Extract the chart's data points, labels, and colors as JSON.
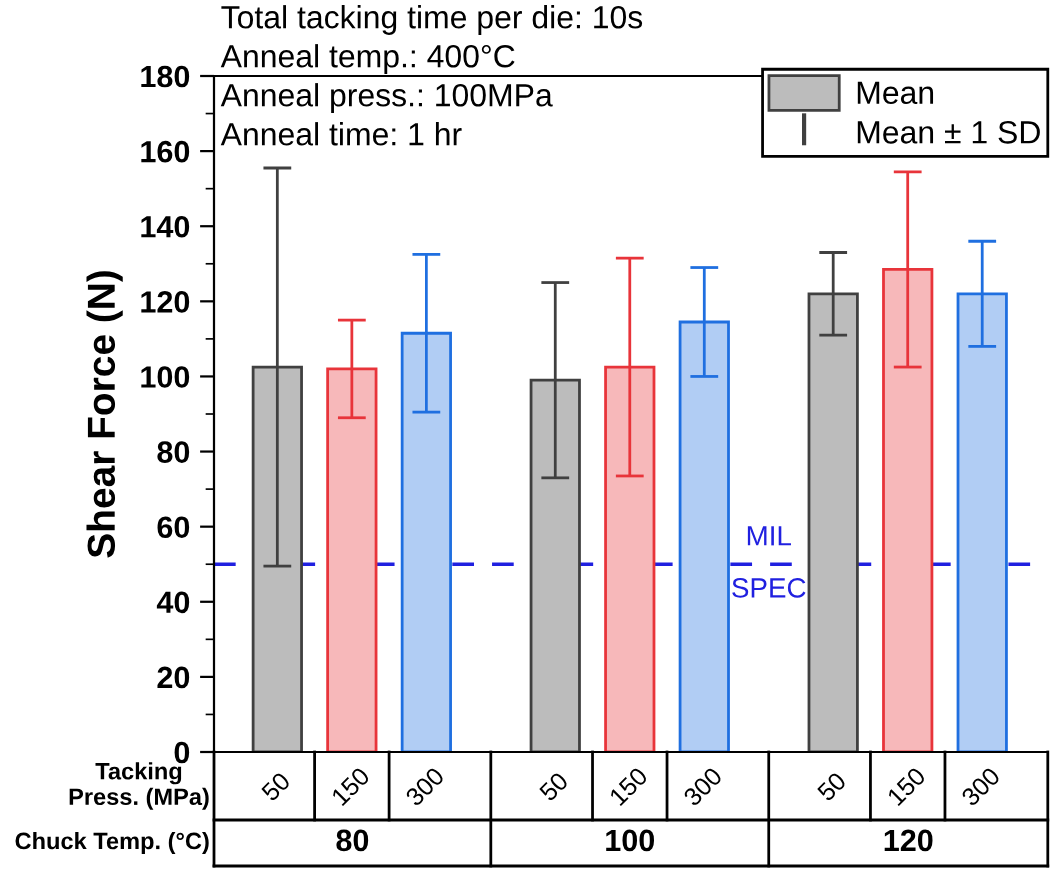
{
  "chart_data": {
    "type": "bar",
    "ylabel": "Shear Force (N)",
    "categories": [
      "50",
      "150",
      "300",
      "50",
      "150",
      "300",
      "50",
      "150",
      "300"
    ],
    "series": [
      {
        "name": "Mean",
        "color": "#404040",
        "colors": [
          "#404040",
          "#e8343a",
          "#1f6fe0",
          "#404040",
          "#e8343a",
          "#1f6fe0",
          "#404040",
          "#e8343a",
          "#1f6fe0"
        ],
        "values": [
          102.5,
          102,
          111.5,
          99,
          102.5,
          114.5,
          122,
          128.5,
          122
        ],
        "errors": [
          53,
          13,
          21,
          26,
          29,
          14.5,
          11,
          26,
          14
        ]
      }
    ],
    "ylim": [
      0,
      180
    ],
    "yticks": [
      0,
      20,
      40,
      60,
      80,
      100,
      120,
      140,
      160,
      180
    ],
    "ref_lines": [
      {
        "axis": "y",
        "value": 50,
        "label": "MIL\nSPEC",
        "color": "#2020e0",
        "line_style": "dashed"
      }
    ],
    "annotations": [
      "Total tacking time per die: 10s",
      "Anneal temp.: 400°C",
      "Anneal press.: 100MPa",
      "Anneal time: 1 hr",
      "Mean ± 1 SD",
      "Tacking\nPress. (MPa)",
      "Chuck Temp. (°C)",
      "80",
      "100",
      "120"
    ],
    "legend": "top right",
    "grid": false
  }
}
